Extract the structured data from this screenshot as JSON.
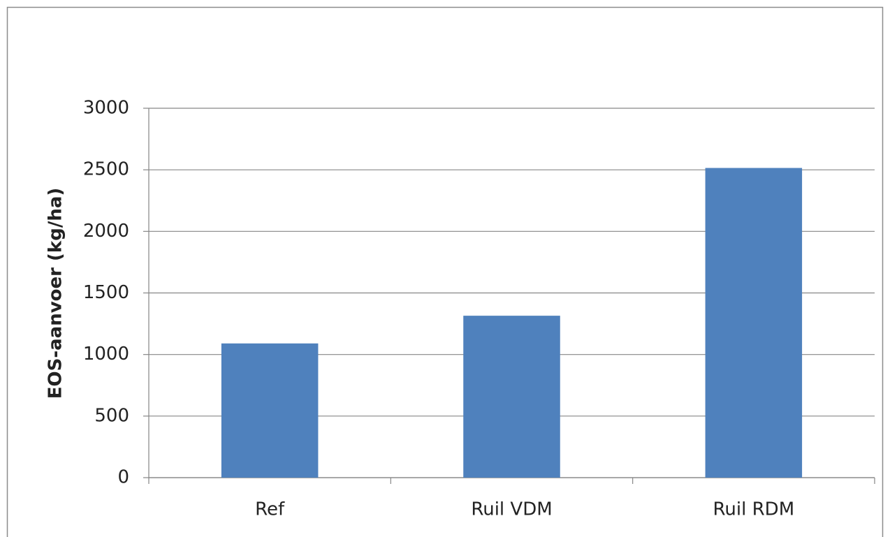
{
  "chart_data": {
    "type": "bar",
    "y_label": "EOS-aanvoer (kg/ha)",
    "categories": [
      "Ref",
      "Ruil VDM",
      "Ruil RDM"
    ],
    "values": [
      1090,
      1315,
      2515
    ],
    "color": "#4f81bd",
    "ylim": [
      0,
      3000
    ],
    "yticks": [
      0,
      500,
      1000,
      1500,
      2000,
      2500,
      3000
    ],
    "grid": true
  }
}
